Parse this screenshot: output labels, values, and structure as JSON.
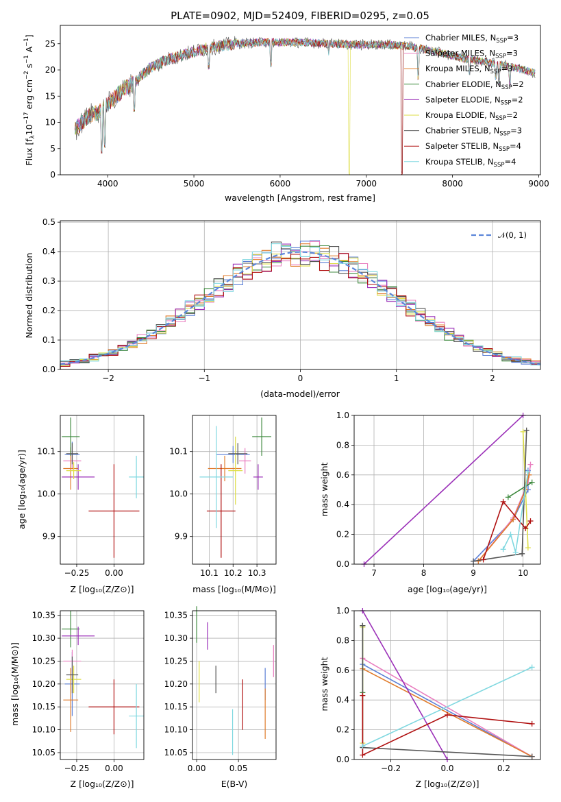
{
  "colors": {
    "Chabrier MILES": "#5b7fd6",
    "Salpeter MILES": "#e97fc0",
    "Kroupa MILES": "#e07b2b",
    "Chabrier ELODIE": "#3f8a3f",
    "Salpeter ELODIE": "#9b30b8",
    "Kroupa ELODIE": "#dddd44",
    "Chabrier STELIB": "#555555",
    "Salpeter STELIB": "#b01010",
    "Kroupa STELIB": "#80d8e0",
    "Normal": "#5b86d9"
  },
  "chart_data": [
    {
      "type": "line",
      "title": "PLATE=0902, MJD=52409, FIBERID=0295, z=0.05",
      "xlabel": "wavelength [Angstrom, rest frame]",
      "ylabel": "Flux [fλ10^-17 erg cm^-2 s^-1 A^-1]",
      "ylabel_parts": {
        "pre": "Flux [f",
        "lam": "λ",
        "ten": "10",
        "exp1": "−17",
        "mid": " erg cm",
        "exp2": "−2",
        "s": " s",
        "exp3": "−1",
        "a": " A",
        "exp4": "−1",
        "end": "]"
      },
      "xlim": [
        3450,
        9020
      ],
      "ylim": [
        0,
        28.5
      ],
      "xticks": [
        4000,
        5000,
        6000,
        7000,
        8000,
        9000
      ],
      "yticks": [
        0,
        5,
        10,
        15,
        20,
        25
      ],
      "legend_position": "right",
      "legend": [
        {
          "name": "Chabrier MILES",
          "nssp": "3"
        },
        {
          "name": "Salpeter MILES",
          "nssp": "3"
        },
        {
          "name": "Kroupa MILES",
          "nssp": "3"
        },
        {
          "name": "Chabrier ELODIE",
          "nssp": "2"
        },
        {
          "name": "Salpeter ELODIE",
          "nssp": "2"
        },
        {
          "name": "Kroupa ELODIE",
          "nssp": "2"
        },
        {
          "name": "Chabrier STELIB",
          "nssp": "3"
        },
        {
          "name": "Salpeter STELIB",
          "nssp": "4"
        },
        {
          "name": "Kroupa STELIB",
          "nssp": "4"
        }
      ],
      "nssp_prefix": "N",
      "nssp_sub": "SSP",
      "continuum": {
        "x": [
          3620,
          3700,
          3800,
          3900,
          4000,
          4100,
          4200,
          4300,
          4400,
          4500,
          4700,
          5000,
          5200,
          5500,
          5800,
          6000,
          6300,
          6600,
          6900,
          7200,
          7500,
          7800,
          8100,
          8400,
          8700,
          8950
        ],
        "y": [
          8.5,
          10,
          11.5,
          12,
          13.5,
          15,
          16.5,
          17.5,
          19,
          20.5,
          22,
          23.5,
          24.3,
          25,
          25.3,
          25.3,
          25.2,
          25,
          24.8,
          24.9,
          24.5,
          23.5,
          22.3,
          21.5,
          20.5,
          19.5
        ]
      },
      "dips": [
        {
          "x": 3934,
          "y": 4
        },
        {
          "x": 3968,
          "y": 5
        },
        {
          "x": 4305,
          "y": 12
        },
        {
          "x": 5175,
          "y": 20
        },
        {
          "x": 5890,
          "y": 20.5
        },
        {
          "x": 6563,
          "y": 22.5
        },
        {
          "x": 6800,
          "y": 0
        },
        {
          "x": 7410,
          "y": 0
        },
        {
          "x": 7600,
          "y": 18
        },
        {
          "x": 8200,
          "y": 19
        },
        {
          "x": 8500,
          "y": 18
        },
        {
          "x": 8542,
          "y": 17
        },
        {
          "x": 8662,
          "y": 17
        }
      ]
    },
    {
      "type": "line",
      "xlabel": "(data-model)/error",
      "ylabel": "Normed distribution",
      "xlim": [
        -2.5,
        2.5
      ],
      "ylim": [
        0,
        0.505
      ],
      "xticks": [
        -2,
        -1,
        0,
        1,
        2
      ],
      "yticks": [
        0.0,
        0.1,
        0.2,
        0.3,
        0.4,
        0.5
      ],
      "ytick_labels": [
        "0.0",
        "0.1",
        "0.2",
        "0.3",
        "0.4",
        "0.5"
      ],
      "xtick_labels": [
        "−2",
        "−1",
        "0",
        "1",
        "2"
      ],
      "grid": true,
      "bin_width": 0.1,
      "legend_position": "top-right",
      "normal_curve": {
        "name": "𝒩(0, 1)",
        "mean": 0,
        "sigma": 1
      }
    },
    {
      "type": "scatter",
      "xlabel": "Z [log₁₀(Z/Z⊙)]",
      "ylabel": "age  [log₁₀(age/yr)]",
      "xlim": [
        -0.36,
        0.2
      ],
      "ylim": [
        9.835,
        10.185
      ],
      "xticks": [
        -0.25,
        0.0
      ],
      "xtick_labels": [
        "−0.25",
        "0.00"
      ],
      "yticks": [
        9.9,
        10.0,
        10.1
      ],
      "ytick_labels": [
        "9.9",
        "10.0",
        "10.1"
      ],
      "grid": true,
      "points": [
        {
          "series": "Chabrier MILES",
          "x": -0.28,
          "y": 10.093,
          "xerr": 0.05,
          "yerr": 0.03
        },
        {
          "series": "Salpeter MILES",
          "x": -0.28,
          "y": 10.078,
          "xerr": 0.06,
          "yerr": 0.02
        },
        {
          "series": "Kroupa MILES",
          "x": -0.29,
          "y": 10.06,
          "xerr": 0.05,
          "yerr": 0.05
        },
        {
          "series": "Chabrier ELODIE",
          "x": -0.29,
          "y": 10.135,
          "xerr": 0.06,
          "yerr": 0.045
        },
        {
          "series": "Salpeter ELODIE",
          "x": -0.24,
          "y": 10.04,
          "xerr": 0.11,
          "yerr": 0.03
        },
        {
          "series": "Kroupa ELODIE",
          "x": -0.27,
          "y": 10.055,
          "xerr": 0.05,
          "yerr": 0.02
        },
        {
          "series": "Chabrier STELIB",
          "x": -0.28,
          "y": 10.095,
          "xerr": 0.04,
          "yerr": 0.025
        },
        {
          "series": "Salpeter STELIB",
          "x": 0.0,
          "y": 9.96,
          "xerr": 0.17,
          "yerr": 0.11
        },
        {
          "series": "Kroupa STELIB",
          "x": 0.15,
          "y": 10.04,
          "xerr": 0.05,
          "yerr": 0.05
        }
      ]
    },
    {
      "type": "scatter",
      "xlabel": "mass [log₁₀(M/M⊙)]",
      "xlim": [
        10.03,
        10.38
      ],
      "ylim": [
        9.835,
        10.185
      ],
      "xticks": [
        10.1,
        10.2,
        10.3
      ],
      "xtick_labels": [
        "10.1",
        "10.2",
        "10.3"
      ],
      "yticks": [
        9.9,
        10.0,
        10.1
      ],
      "ytick_labels": [
        "9.9",
        "10.0",
        "10.1"
      ],
      "grid": true,
      "points": [
        {
          "series": "Chabrier MILES",
          "x": 10.2,
          "y": 10.093,
          "xerr": 0.07,
          "yerr": 0.02
        },
        {
          "series": "Salpeter MILES",
          "x": 10.25,
          "y": 10.078,
          "xerr": 0.025,
          "yerr": 0.03
        },
        {
          "series": "Kroupa MILES",
          "x": 10.165,
          "y": 10.06,
          "xerr": 0.07,
          "yerr": 0.03
        },
        {
          "series": "Chabrier ELODIE",
          "x": 10.32,
          "y": 10.135,
          "xerr": 0.04,
          "yerr": 0.045
        },
        {
          "series": "Salpeter ELODIE",
          "x": 10.305,
          "y": 10.04,
          "xerr": 0.02,
          "yerr": 0.03
        },
        {
          "series": "Kroupa ELODIE",
          "x": 10.21,
          "y": 10.055,
          "xerr": 0.03,
          "yerr": 0.08
        },
        {
          "series": "Chabrier STELIB",
          "x": 10.22,
          "y": 10.095,
          "xerr": 0.04,
          "yerr": 0.025
        },
        {
          "series": "Salpeter STELIB",
          "x": 10.15,
          "y": 9.96,
          "xerr": 0.06,
          "yerr": 0.11
        },
        {
          "series": "Kroupa STELIB",
          "x": 10.13,
          "y": 10.04,
          "xerr": 0.07,
          "yerr": 0.12
        }
      ]
    },
    {
      "type": "line",
      "xlabel": "age  [log₁₀(age/yr)]",
      "ylabel": "mass weight",
      "xlim": [
        6.6,
        10.35
      ],
      "ylim": [
        0.0,
        1.0
      ],
      "xticks": [
        7,
        8,
        9,
        10
      ],
      "yticks": [
        0.0,
        0.2,
        0.4,
        0.6,
        0.8,
        1.0
      ],
      "ytick_labels": [
        "0.0",
        "0.2",
        "0.4",
        "0.6",
        "0.8",
        "1.0"
      ],
      "grid": true,
      "series": [
        {
          "name": "Chabrier MILES",
          "x": [
            9.0,
            9.8,
            10.1,
            10.1
          ],
          "y": [
            0.02,
            0.3,
            0.5,
            0.63
          ]
        },
        {
          "name": "Salpeter MILES",
          "x": [
            9.1,
            9.8,
            10.1,
            10.15
          ],
          "y": [
            0.02,
            0.31,
            0.55,
            0.67
          ]
        },
        {
          "name": "Kroupa MILES",
          "x": [
            9.1,
            9.8,
            10.05,
            10.12
          ],
          "y": [
            0.02,
            0.3,
            0.5,
            0.6
          ]
        },
        {
          "name": "Chabrier ELODIE",
          "x": [
            9.7,
            10.18
          ],
          "y": [
            0.45,
            0.55
          ]
        },
        {
          "name": "Salpeter ELODIE",
          "x": [
            6.8,
            10.0
          ],
          "y": [
            0.0,
            1.0
          ]
        },
        {
          "name": "Kroupa ELODIE",
          "x": [
            10.0,
            10.1
          ],
          "y": [
            0.89,
            0.11
          ]
        },
        {
          "name": "Chabrier STELIB",
          "x": [
            9.0,
            9.98,
            10.07
          ],
          "y": [
            0.02,
            0.07,
            0.9
          ]
        },
        {
          "name": "Salpeter STELIB",
          "x": [
            9.2,
            9.6,
            10.05,
            10.15
          ],
          "y": [
            0.03,
            0.42,
            0.24,
            0.29
          ]
        },
        {
          "name": "Kroupa STELIB",
          "x": [
            9.6,
            9.75,
            9.85,
            10.1
          ],
          "y": [
            0.1,
            0.2,
            0.08,
            0.62
          ]
        }
      ]
    },
    {
      "type": "scatter",
      "xlabel": "Z [log₁₀(Z/Z⊙)]",
      "ylabel": "mass [log₁₀(M/M⊙)]",
      "xlim": [
        -0.36,
        0.2
      ],
      "ylim": [
        10.035,
        10.36
      ],
      "xticks": [
        -0.25,
        0.0
      ],
      "xtick_labels": [
        "−0.25",
        "0.00"
      ],
      "yticks": [
        10.05,
        10.1,
        10.15,
        10.2,
        10.25,
        10.3,
        10.35
      ],
      "ytick_labels": [
        "10.05",
        "10.10",
        "10.15",
        "10.20",
        "10.25",
        "10.30",
        "10.35"
      ],
      "grid": true,
      "points": [
        {
          "series": "Chabrier MILES",
          "x": -0.28,
          "y": 10.2,
          "xerr": 0.05,
          "yerr": 0.07
        },
        {
          "series": "Salpeter MILES",
          "x": -0.28,
          "y": 10.25,
          "xerr": 0.06,
          "yerr": 0.025
        },
        {
          "series": "Kroupa MILES",
          "x": -0.29,
          "y": 10.165,
          "xerr": 0.05,
          "yerr": 0.07
        },
        {
          "series": "Chabrier ELODIE",
          "x": -0.29,
          "y": 10.32,
          "xerr": 0.06,
          "yerr": 0.04
        },
        {
          "series": "Salpeter ELODIE",
          "x": -0.24,
          "y": 10.305,
          "xerr": 0.11,
          "yerr": 0.02
        },
        {
          "series": "Kroupa ELODIE",
          "x": -0.27,
          "y": 10.21,
          "xerr": 0.05,
          "yerr": 0.03
        },
        {
          "series": "Chabrier STELIB",
          "x": -0.28,
          "y": 10.22,
          "xerr": 0.04,
          "yerr": 0.04
        },
        {
          "series": "Salpeter STELIB",
          "x": 0.0,
          "y": 10.15,
          "xerr": 0.17,
          "yerr": 0.06
        },
        {
          "series": "Kroupa STELIB",
          "x": 0.15,
          "y": 10.13,
          "xerr": 0.05,
          "yerr": 0.07
        }
      ]
    },
    {
      "type": "scatter",
      "xlabel": "E(B-V)",
      "xlim": [
        -0.005,
        0.095
      ],
      "ylim": [
        10.035,
        10.36
      ],
      "xticks": [
        0.0,
        0.05
      ],
      "xtick_labels": [
        "0.00",
        "0.05"
      ],
      "yticks": [
        10.05,
        10.1,
        10.15,
        10.2,
        10.25,
        10.3,
        10.35
      ],
      "ytick_labels": [
        "10.05",
        "10.10",
        "10.15",
        "10.20",
        "10.25",
        "10.30",
        "10.35"
      ],
      "grid": true,
      "points": [
        {
          "series": "Chabrier MILES",
          "x": 0.082,
          "y": 10.2,
          "xerr": 0,
          "yerr": 0.035
        },
        {
          "series": "Salpeter MILES",
          "x": 0.092,
          "y": 10.25,
          "xerr": 0,
          "yerr": 0.035
        },
        {
          "series": "Kroupa MILES",
          "x": 0.082,
          "y": 10.135,
          "xerr": 0,
          "yerr": 0.055
        },
        {
          "series": "Chabrier ELODIE",
          "x": 0.0,
          "y": 10.33,
          "xerr": 0,
          "yerr": 0.04
        },
        {
          "series": "Salpeter ELODIE",
          "x": 0.013,
          "y": 10.305,
          "xerr": 0,
          "yerr": 0.03
        },
        {
          "series": "Kroupa ELODIE",
          "x": 0.003,
          "y": 10.205,
          "xerr": 0,
          "yerr": 0.045
        },
        {
          "series": "Chabrier STELIB",
          "x": 0.023,
          "y": 10.21,
          "xerr": 0,
          "yerr": 0.03
        },
        {
          "series": "Salpeter STELIB",
          "x": 0.055,
          "y": 10.155,
          "xerr": 0,
          "yerr": 0.055
        },
        {
          "series": "Kroupa STELIB",
          "x": 0.043,
          "y": 10.095,
          "xerr": 0,
          "yerr": 0.05
        }
      ]
    },
    {
      "type": "line",
      "xlabel": "Z [log₁₀(Z/Z⊙)]",
      "ylabel": "mass weight",
      "xlim": [
        -0.33,
        0.33
      ],
      "ylim": [
        0.0,
        1.0
      ],
      "xticks": [
        -0.2,
        0.0,
        0.2
      ],
      "xtick_labels": [
        "−0.2",
        "0.0",
        "0.2"
      ],
      "yticks": [
        0.0,
        0.2,
        0.4,
        0.6,
        0.8,
        1.0
      ],
      "ytick_labels": [
        "0.0",
        "0.2",
        "0.4",
        "0.6",
        "0.8",
        "1.0"
      ],
      "grid": true,
      "series": [
        {
          "name": "Chabrier MILES",
          "x": [
            -0.3,
            0.3
          ],
          "y": [
            0.64,
            0.02
          ]
        },
        {
          "name": "Salpeter MILES",
          "x": [
            -0.3,
            0.3
          ],
          "y": [
            0.68,
            0.02
          ]
        },
        {
          "name": "Kroupa MILES",
          "x": [
            -0.3,
            0.3
          ],
          "y": [
            0.61,
            0.02
          ]
        },
        {
          "name": "Chabrier ELODIE",
          "x": [
            -0.3,
            -0.3
          ],
          "y": [
            0.45,
            0.9
          ]
        },
        {
          "name": "Salpeter ELODIE",
          "x": [
            -0.3,
            0.0
          ],
          "y": [
            1.0,
            0.0
          ]
        },
        {
          "name": "Kroupa ELODIE",
          "x": [
            -0.3,
            -0.3
          ],
          "y": [
            0.11,
            0.89
          ]
        },
        {
          "name": "Chabrier STELIB",
          "x": [
            -0.3,
            -0.3,
            0.3
          ],
          "y": [
            0.9,
            0.08,
            0.02
          ]
        },
        {
          "name": "Salpeter STELIB",
          "x": [
            -0.3,
            -0.3,
            0.0,
            0.3
          ],
          "y": [
            0.43,
            0.03,
            0.3,
            0.24
          ]
        },
        {
          "name": "Kroupa STELIB",
          "x": [
            -0.3,
            0.3
          ],
          "y": [
            0.09,
            0.62
          ]
        }
      ]
    }
  ]
}
